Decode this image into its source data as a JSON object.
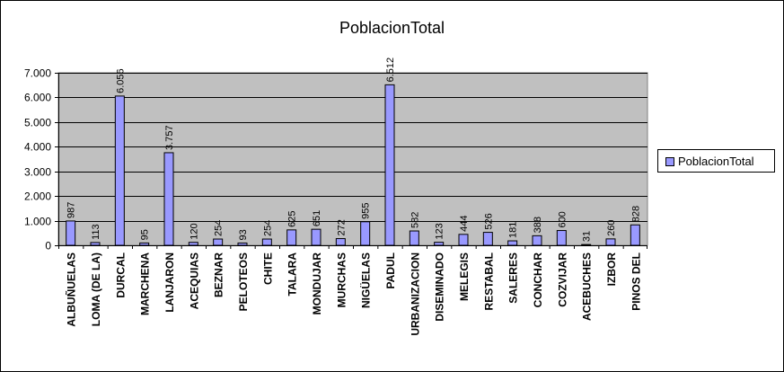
{
  "chart_data": {
    "type": "bar",
    "title": "PoblacionTotal",
    "categories": [
      "ALBUÑUELAS",
      "LOMA (DE LA)",
      "DURCAL",
      "MARCHENA",
      "LANJARON",
      "ACEQUIAS",
      "BEZNAR",
      "PELOTEOS",
      "CHITE",
      "TALARA",
      "MONDUJAR",
      "MURCHAS",
      "NIGÜELAS",
      "PADUL",
      "URBANIZACION",
      "DISEMINADO",
      "MELEGIS",
      "RESTABAL",
      "SALERES",
      "CONCHAR",
      "COZVIJAR",
      "ACEBUCHES",
      "IZBOR",
      "PINOS DEL"
    ],
    "series": [
      {
        "name": "PoblacionTotal",
        "values": [
          987,
          113,
          6056,
          95,
          3757,
          120,
          254,
          93,
          254,
          625,
          651,
          272,
          955,
          6512,
          582,
          123,
          444,
          526,
          181,
          388,
          600,
          31,
          260,
          828
        ],
        "labels": [
          "987",
          "113",
          "6.056",
          "95",
          "3.757",
          "120",
          "254",
          "93",
          "254",
          "625",
          "651",
          "272",
          "955",
          "6.512",
          "582",
          "123",
          "444",
          "526",
          "181",
          "388",
          "600",
          "31",
          "260",
          "828"
        ]
      }
    ],
    "ylim": [
      0,
      7000
    ],
    "yticks": [
      0,
      1000,
      2000,
      3000,
      4000,
      5000,
      6000,
      7000
    ],
    "ytick_labels": [
      "0",
      "1.000",
      "2.000",
      "3.000",
      "4.000",
      "5.000",
      "6.000",
      "7.000"
    ],
    "grid": true,
    "legend": "right",
    "colors": {
      "bar": "#9999ff",
      "plot_background": "#c0c0c0",
      "gridline": "#000000"
    }
  }
}
